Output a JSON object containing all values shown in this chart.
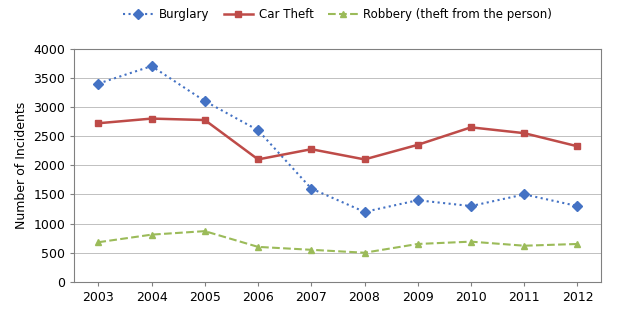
{
  "years": [
    2003,
    2004,
    2005,
    2006,
    2007,
    2008,
    2009,
    2010,
    2011,
    2012
  ],
  "burglary": [
    3400,
    3700,
    3100,
    2600,
    1600,
    1200,
    1400,
    1300,
    1500,
    1300
  ],
  "car_theft": [
    2720,
    2800,
    2775,
    2100,
    2275,
    2100,
    2350,
    2650,
    2550,
    2325
  ],
  "robbery": [
    680,
    810,
    870,
    600,
    550,
    500,
    650,
    690,
    620,
    650
  ],
  "burglary_color": "#4472C4",
  "car_theft_color": "#BE4B48",
  "robbery_color": "#9BBB59",
  "ylabel": "Number of Incidents",
  "ylim": [
    0,
    4000
  ],
  "yticks": [
    0,
    500,
    1000,
    1500,
    2000,
    2500,
    3000,
    3500,
    4000
  ],
  "legend_labels": [
    "Burglary",
    "Car Theft",
    "Robbery (theft from the person)"
  ],
  "background_color": "#ffffff",
  "grid_color": "#C0C0C0",
  "spine_color": "#808080"
}
